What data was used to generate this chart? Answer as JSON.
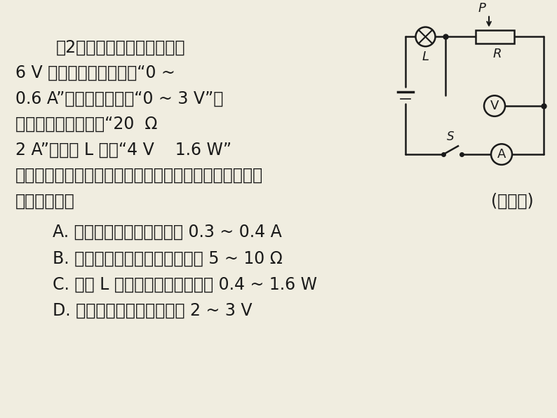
{
  "bg_color": "#f0ede0",
  "text_color": "#1a1a1a",
  "line1": "（2）如图所示，电源电压为",
  "line2": "6 V 不变，电流表量程为“0 ~",
  "line3": "0.6 A”，电压表量程为“0 ~ 3 V”，",
  "line4": "滑动变阵器的规格为“20  Ω",
  "line5": "2 A”，灯泡 L 标有“4 V    1.6 W”",
  "line6": "字样（灯丝电阱不变）。为了保证电路中元件安全，下列",
  "line7": "说法错误的是",
  "parenthesis": "(　　　)",
  "optA": "A. 电流表示数的变化范围为 0.3 ~ 0.4 A",
  "optB": "B. 滑动变阵器阻值的变化范围为 5 ~ 10 Ω",
  "optC": "C. 电灯 L 消耗功率的变化范围为 0.4 ~ 1.6 W",
  "optD": "D. 电压表示数的变化范围为 2 ~ 3 V",
  "font_size_main": 17,
  "font_size_options": 17
}
